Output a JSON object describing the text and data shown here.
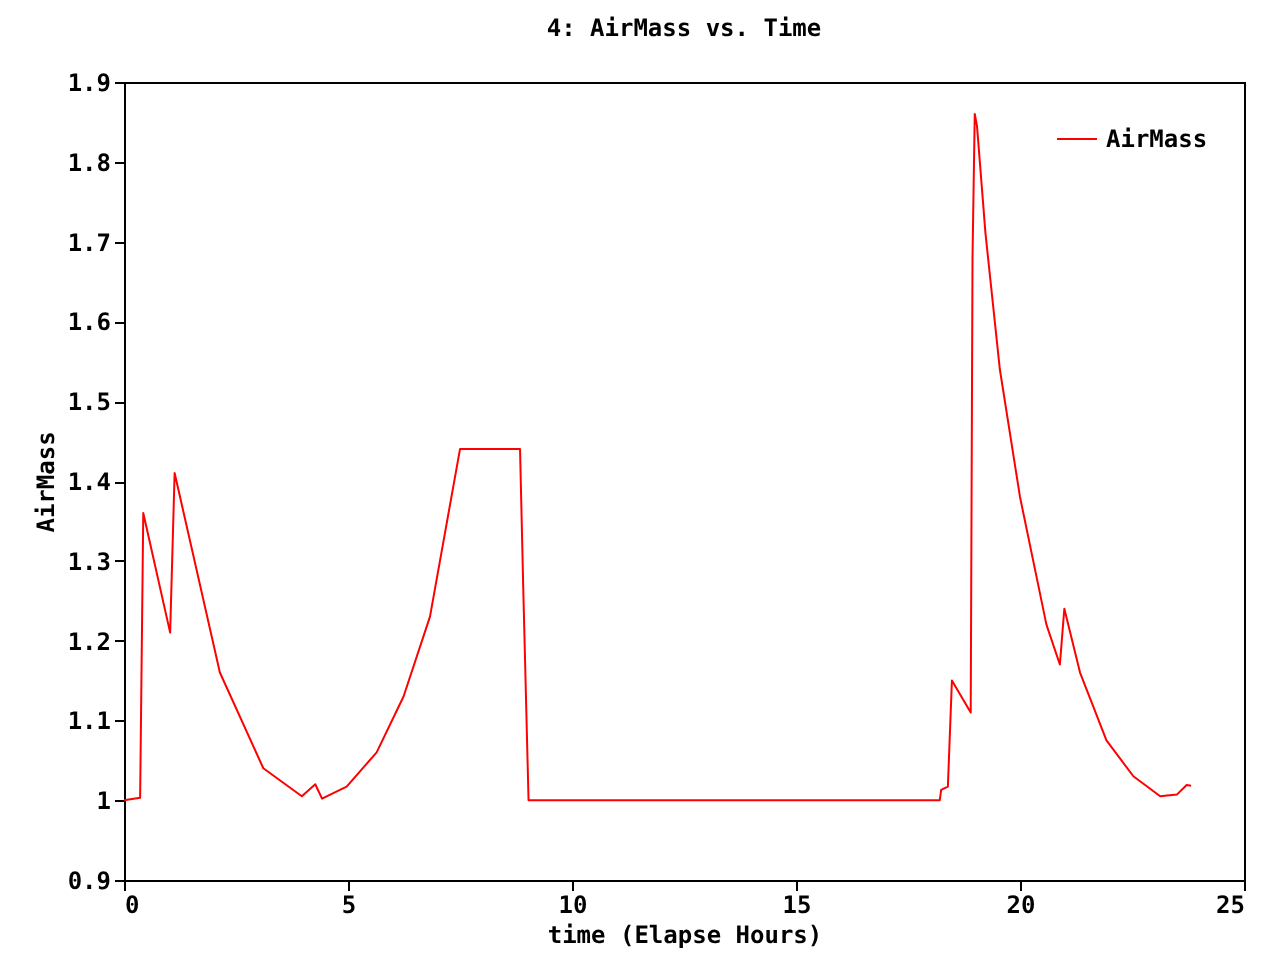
{
  "chart_data": {
    "type": "line",
    "title": "4: AirMass vs. Time",
    "xlabel": "time (Elapse Hours)",
    "ylabel": "AirMass",
    "xlim": [
      0,
      25
    ],
    "xticks": [
      0,
      5,
      10,
      15,
      20,
      25
    ],
    "ylim": [
      0.9,
      1.9
    ],
    "yticks": [
      0.9,
      1,
      1.1,
      1.2,
      1.3,
      1.4,
      1.5,
      1.6,
      1.7,
      1.8,
      1.9
    ],
    "legend": "top right",
    "grid": false,
    "series": [
      {
        "name": "AirMass",
        "color": "#ff0000",
        "x": [
          0,
          0.36,
          0.43,
          1.03,
          1.13,
          2.14,
          3.11,
          3.97,
          4.27,
          4.42,
          4.97,
          5.64,
          6.24,
          6.83,
          7.5,
          8.84,
          8.91,
          9.03,
          18.21,
          18.24,
          18.39,
          18.48,
          18.9,
          18.94,
          18.99,
          19.04,
          19.23,
          19.55,
          20.0,
          20.59,
          20.89,
          20.99,
          21.34,
          21.93,
          22.53,
          23.13,
          23.5,
          23.72,
          23.82
        ],
        "values": [
          1.0,
          1.003,
          1.36,
          1.21,
          1.41,
          1.16,
          1.04,
          1.005,
          1.02,
          1.002,
          1.017,
          1.06,
          1.13,
          1.23,
          1.44,
          1.44,
          1.27,
          1.0,
          1.0,
          1.013,
          1.017,
          1.15,
          1.11,
          1.68,
          1.86,
          1.845,
          1.71,
          1.54,
          1.38,
          1.22,
          1.17,
          1.24,
          1.16,
          1.075,
          1.03,
          1.005,
          1.007,
          1.019,
          1.018
        ]
      }
    ]
  }
}
